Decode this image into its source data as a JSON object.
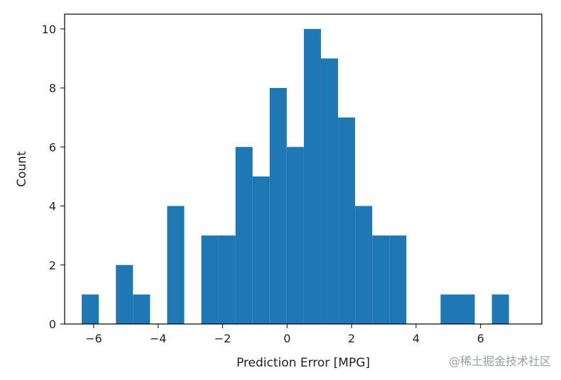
{
  "chart_data": {
    "type": "bar",
    "title": "",
    "xlabel": "Prediction Error [MPG]",
    "ylabel": "Count",
    "xlim": [
      -6.9,
      7.9
    ],
    "ylim": [
      0,
      10.5
    ],
    "xticks": [
      -6,
      -4,
      -2,
      0,
      2,
      4,
      6
    ],
    "xtick_labels": [
      "−6",
      "−4",
      "−2",
      "0",
      "2",
      "4",
      "6"
    ],
    "yticks": [
      0,
      2,
      4,
      6,
      8,
      10
    ],
    "ytick_labels": [
      "0",
      "2",
      "4",
      "6",
      "8",
      "10"
    ],
    "grid": false,
    "bar_color": "#1f77b4",
    "bins": [
      {
        "x0": -6.37,
        "x1": -5.84,
        "count": 1
      },
      {
        "x0": -5.84,
        "x1": -5.31,
        "count": 0
      },
      {
        "x0": -5.31,
        "x1": -4.78,
        "count": 2
      },
      {
        "x0": -4.78,
        "x1": -4.25,
        "count": 1
      },
      {
        "x0": -4.25,
        "x1": -3.72,
        "count": 0
      },
      {
        "x0": -3.72,
        "x1": -3.19,
        "count": 4
      },
      {
        "x0": -3.19,
        "x1": -2.66,
        "count": 0
      },
      {
        "x0": -2.66,
        "x1": -2.13,
        "count": 3
      },
      {
        "x0": -2.13,
        "x1": -1.6,
        "count": 3
      },
      {
        "x0": -1.6,
        "x1": -1.07,
        "count": 6
      },
      {
        "x0": -1.07,
        "x1": -0.54,
        "count": 5
      },
      {
        "x0": -0.54,
        "x1": -0.01,
        "count": 8
      },
      {
        "x0": -0.01,
        "x1": 0.52,
        "count": 6
      },
      {
        "x0": 0.52,
        "x1": 1.05,
        "count": 10
      },
      {
        "x0": 1.05,
        "x1": 1.58,
        "count": 9
      },
      {
        "x0": 1.58,
        "x1": 2.11,
        "count": 7
      },
      {
        "x0": 2.11,
        "x1": 2.64,
        "count": 4
      },
      {
        "x0": 2.64,
        "x1": 3.17,
        "count": 3
      },
      {
        "x0": 3.17,
        "x1": 3.7,
        "count": 3
      },
      {
        "x0": 3.7,
        "x1": 4.23,
        "count": 0
      },
      {
        "x0": 4.23,
        "x1": 4.76,
        "count": 0
      },
      {
        "x0": 4.76,
        "x1": 5.29,
        "count": 1
      },
      {
        "x0": 5.29,
        "x1": 5.82,
        "count": 1
      },
      {
        "x0": 5.82,
        "x1": 6.35,
        "count": 0
      },
      {
        "x0": 6.35,
        "x1": 6.88,
        "count": 1
      }
    ]
  },
  "watermark": "@稀土掘金技术社区"
}
